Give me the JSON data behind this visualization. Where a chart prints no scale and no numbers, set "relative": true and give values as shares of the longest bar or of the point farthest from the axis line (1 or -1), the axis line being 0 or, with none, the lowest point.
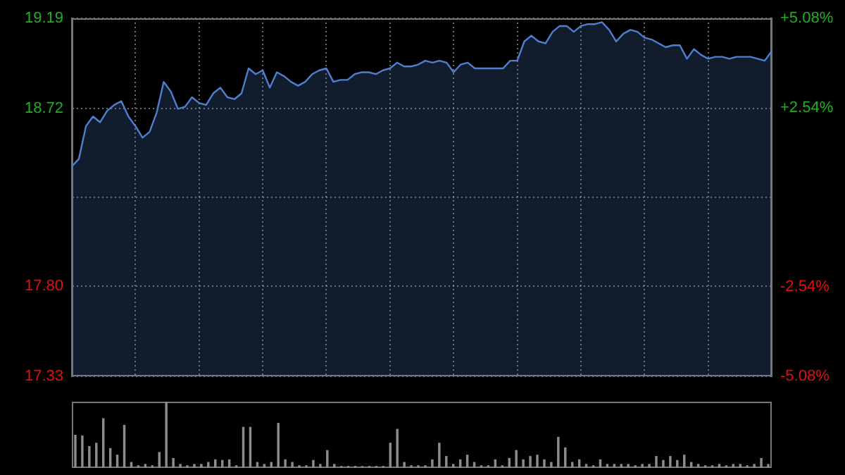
{
  "chart_data": [
    {
      "type": "area",
      "color": "#4f7fce",
      "grid": true,
      "categories": [
        null,
        null,
        null,
        null,
        null,
        null,
        null,
        null,
        null,
        null,
        null,
        null,
        null,
        null,
        null,
        null,
        null,
        null,
        null,
        null,
        null,
        null,
        null,
        null,
        null,
        null,
        null,
        null,
        null,
        null,
        null,
        null,
        null,
        null,
        null,
        null,
        null,
        null,
        null,
        null,
        null,
        null,
        null,
        null,
        null,
        null,
        null,
        null,
        null,
        null,
        null,
        null,
        null,
        null,
        null,
        null,
        null,
        null,
        null,
        null,
        null,
        null,
        null,
        null,
        null,
        null,
        null,
        null,
        null,
        null,
        null,
        null,
        null,
        null,
        null,
        null,
        null,
        null,
        null,
        null,
        null,
        null,
        null,
        null,
        null,
        null,
        null,
        null,
        null,
        null,
        null,
        null,
        null,
        null,
        null,
        null,
        null,
        null,
        null,
        null
      ],
      "values": [
        18.42,
        18.46,
        18.63,
        18.68,
        18.65,
        18.71,
        18.74,
        18.76,
        18.68,
        18.63,
        18.57,
        18.6,
        18.7,
        18.86,
        18.81,
        18.72,
        18.73,
        18.78,
        18.75,
        18.74,
        18.8,
        18.83,
        18.78,
        18.77,
        18.8,
        18.93,
        18.9,
        18.92,
        18.83,
        18.91,
        18.89,
        18.86,
        18.84,
        18.86,
        18.9,
        18.92,
        18.93,
        18.86,
        18.87,
        18.87,
        18.9,
        18.91,
        18.91,
        18.9,
        18.92,
        18.93,
        18.96,
        18.94,
        18.94,
        18.95,
        18.97,
        18.96,
        18.97,
        18.96,
        18.91,
        18.95,
        18.96,
        18.93,
        18.93,
        18.93,
        18.93,
        18.93,
        18.97,
        18.97,
        19.07,
        19.1,
        19.07,
        19.06,
        19.12,
        19.15,
        19.15,
        19.12,
        19.15,
        19.16,
        19.16,
        19.17,
        19.13,
        19.07,
        19.11,
        19.13,
        19.12,
        19.09,
        19.08,
        19.06,
        19.04,
        19.05,
        19.05,
        18.98,
        19.03,
        19.0,
        18.98,
        18.99,
        18.99,
        18.98,
        18.99,
        18.99,
        18.99,
        18.98,
        18.97,
        19.02
      ],
      "ylim": [
        17.33,
        19.19
      ],
      "yticks": [
        17.33,
        {
          "value": 17.8,
          "label": "17.80"
        },
        {
          "value": 18.26,
          "label": null
        },
        18.72,
        19.19
      ],
      "y2lim": [
        -5.08,
        5.08
      ],
      "y2ticks": [
        {
          "value": -5.08,
          "label": "-5.08%"
        },
        {
          "value": -2.54,
          "label": "-2.54%"
        },
        {
          "value": 0,
          "label": null
        },
        {
          "value": 2.54,
          "label": "+2.54%"
        },
        {
          "value": 5.08,
          "label": "+5.08%"
        }
      ]
    },
    {
      "type": "bar",
      "relative": true,
      "color": "#8c8c8c",
      "categories": [
        null,
        null,
        null,
        null,
        null,
        null,
        null,
        null,
        null,
        null,
        null,
        null,
        null,
        null,
        null,
        null,
        null,
        null,
        null,
        null,
        null,
        null,
        null,
        null,
        null,
        null,
        null,
        null,
        null,
        null,
        null,
        null,
        null,
        null,
        null,
        null,
        null,
        null,
        null,
        null,
        null,
        null,
        null,
        null,
        null,
        null,
        null,
        null,
        null,
        null,
        null,
        null,
        null,
        null,
        null,
        null,
        null,
        null,
        null,
        null,
        null,
        null,
        null,
        null,
        null,
        null,
        null,
        null,
        null,
        null,
        null,
        null,
        null,
        null,
        null,
        null,
        null,
        null,
        null,
        null,
        null,
        null,
        null,
        null,
        null,
        null,
        null,
        null,
        null,
        null,
        null,
        null,
        null,
        null,
        null,
        null,
        null,
        null,
        null,
        null
      ],
      "values": [
        0.5,
        0.49,
        0.33,
        0.38,
        0.75,
        0.3,
        0.2,
        0.65,
        0.09,
        0.04,
        0.06,
        0.04,
        0.24,
        1.0,
        0.15,
        0.06,
        0.04,
        0.06,
        0.06,
        0.09,
        0.13,
        0.12,
        0.13,
        0.04,
        0.62,
        0.62,
        0.09,
        0.06,
        0.09,
        0.68,
        0.13,
        0.09,
        0.04,
        0.04,
        0.12,
        0.06,
        0.27,
        0.06,
        0.03,
        0.03,
        0.03,
        0.03,
        0.03,
        0.03,
        0.03,
        0.38,
        0.59,
        0.09,
        0.04,
        0.04,
        0.04,
        0.13,
        0.38,
        0.18,
        0.06,
        0.13,
        0.2,
        0.09,
        0.04,
        0.04,
        0.13,
        0.04,
        0.15,
        0.27,
        0.13,
        0.18,
        0.2,
        0.13,
        0.09,
        0.47,
        0.31,
        0.09,
        0.13,
        0.06,
        0.04,
        0.13,
        0.06,
        0.06,
        0.06,
        0.06,
        0.04,
        0.06,
        0.06,
        0.18,
        0.12,
        0.18,
        0.12,
        0.2,
        0.09,
        0.06,
        0.04,
        0.04,
        0.06,
        0.04,
        0.06,
        0.06,
        0.04,
        0.06,
        0.15,
        0.06
      ]
    }
  ]
}
